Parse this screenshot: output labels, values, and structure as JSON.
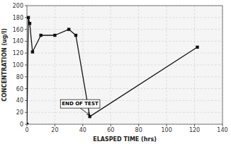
{
  "chart_data": {
    "type": "line",
    "x": [
      0,
      1,
      2,
      4,
      10,
      20,
      30,
      35,
      45,
      122
    ],
    "values": [
      0,
      180,
      170,
      122,
      150,
      150,
      160,
      150,
      13,
      130
    ],
    "xlim": [
      0,
      140
    ],
    "ylim": [
      0,
      200
    ],
    "xticks": [
      0,
      20,
      40,
      60,
      80,
      100,
      120,
      140
    ],
    "yticks": [
      0,
      20,
      40,
      60,
      80,
      100,
      120,
      140,
      160,
      180,
      200
    ],
    "xlabel": "ELASPED TIME (hrs)",
    "ylabel": "CONCENTRATION (ug/l)",
    "annotations": [
      {
        "text": "END OF TEST",
        "x": 45,
        "y": 13,
        "text_x": 25,
        "text_y": 32
      }
    ],
    "color": "#111111",
    "marker": "square",
    "grid": true
  }
}
